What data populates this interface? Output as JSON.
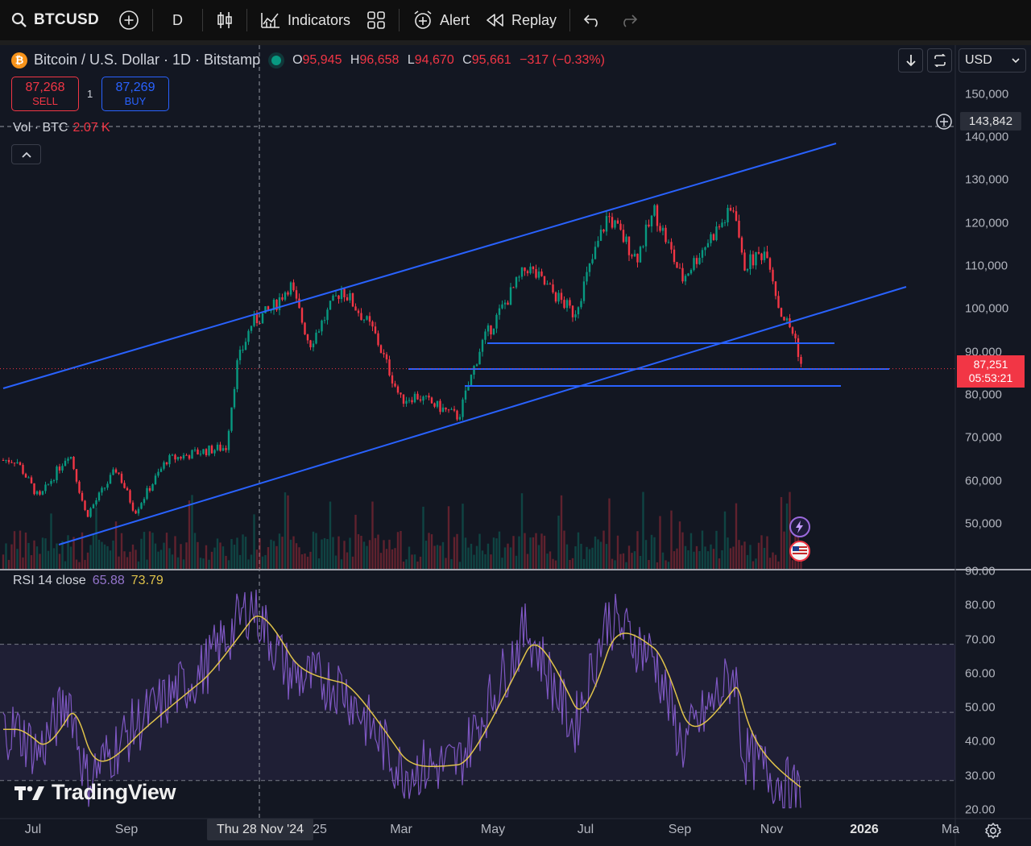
{
  "toolbar": {
    "symbol": "BTCUSD",
    "interval": "D",
    "indicators_label": "Indicators",
    "alert_label": "Alert",
    "replay_label": "Replay"
  },
  "legend": {
    "title": "Bitcoin / U.S. Dollar · 1D · Bitstamp",
    "btc_symbol": "₿",
    "open_label": "O",
    "open": "95,945",
    "high_label": "H",
    "high": "96,658",
    "low_label": "L",
    "low": "94,670",
    "close_label": "C",
    "close": "95,661",
    "change": "−317 (−0.33%)"
  },
  "trade": {
    "sell_price": "87,268",
    "sell_label": "SELL",
    "buy_price": "87,269",
    "buy_label": "BUY",
    "spread": "1"
  },
  "volume": {
    "label": "Vol · BTC",
    "value": "2.07 K"
  },
  "rsi": {
    "label": "RSI 14 close",
    "rsi_value": "65.88",
    "ma_value": "73.79"
  },
  "currency": {
    "selected": "USD"
  },
  "price_scale": [
    "150,000",
    "140,000",
    "130,000",
    "120,000",
    "110,000",
    "100,000",
    "90,000",
    "80,000",
    "70,000",
    "60,000",
    "50,000"
  ],
  "rsi_scale": [
    "90.00",
    "80.00",
    "70.00",
    "60.00",
    "50.00",
    "40.00",
    "30.00",
    "20.00"
  ],
  "crosshair_price": "143,842",
  "last_price": {
    "price": "87,251",
    "countdown": "05:53:21"
  },
  "time_axis": [
    {
      "label": "Jul",
      "bold": false
    },
    {
      "label": "Sep",
      "bold": false
    },
    {
      "label": "25",
      "bold": false
    },
    {
      "label": "Mar",
      "bold": false
    },
    {
      "label": "May",
      "bold": false
    },
    {
      "label": "Jul",
      "bold": false
    },
    {
      "label": "Sep",
      "bold": false
    },
    {
      "label": "Nov",
      "bold": false
    },
    {
      "label": "2026",
      "bold": true
    },
    {
      "label": "Ma",
      "bold": false
    }
  ],
  "crosshair_date": "Thu 28 Nov '24",
  "branding": "TradingView",
  "colors": {
    "up": "#089981",
    "down": "#f23645",
    "trendline": "#2962ff",
    "rsi_line": "#7e57c2",
    "rsi_ma": "#e0c34a",
    "background": "#131722"
  },
  "chart_data": {
    "type": "line",
    "series": [
      {
        "name": "BTCUSD",
        "x": [
          "2024-06-20",
          "2024-07-05",
          "2024-07-25",
          "2024-08-05",
          "2024-08-25",
          "2024-09-06",
          "2024-09-27",
          "2024-10-20",
          "2024-11-05",
          "2024-11-12",
          "2024-11-22",
          "2024-12-05",
          "2024-12-17",
          "2024-12-30",
          "2025-01-20",
          "2025-02-10",
          "2025-02-28",
          "2025-03-10",
          "2025-04-07",
          "2025-04-22",
          "2025-05-10",
          "2025-05-22",
          "2025-06-22",
          "2025-07-14",
          "2025-08-02",
          "2025-08-14",
          "2025-09-01",
          "2025-09-18",
          "2025-10-06",
          "2025-10-11",
          "2025-10-27",
          "2025-11-04",
          "2025-11-14",
          "2025-11-19"
        ],
        "values": [
          66000,
          57000,
          68000,
          53000,
          64000,
          54000,
          66000,
          68000,
          69000,
          88000,
          98000,
          101000,
          107000,
          93000,
          106000,
          96000,
          80000,
          81000,
          76000,
          93000,
          104000,
          111000,
          100000,
          123000,
          113000,
          124000,
          108000,
          117000,
          125000,
          111000,
          115000,
          101000,
          95000,
          87251
        ]
      },
      {
        "name": "RSI 14 close",
        "x": [
          "2024-06-20",
          "2024-07-05",
          "2024-07-25",
          "2024-08-05",
          "2024-09-06",
          "2024-10-20",
          "2024-11-22",
          "2024-12-17",
          "2025-01-20",
          "2025-02-28",
          "2025-04-07",
          "2025-05-22",
          "2025-06-22",
          "2025-07-14",
          "2025-08-14",
          "2025-09-01",
          "2025-10-06",
          "2025-10-11",
          "2025-11-04",
          "2025-11-19"
        ],
        "values": [
          45,
          38,
          55,
          30,
          46,
          62,
          82,
          61,
          58,
          33,
          35,
          75,
          45,
          78,
          66,
          40,
          62,
          38,
          30,
          25
        ]
      }
    ],
    "ylim": [
      45000,
      152000
    ],
    "rsi_ylim": [
      20,
      90
    ],
    "rsi_bands": [
      30,
      70
    ],
    "grid": false
  }
}
